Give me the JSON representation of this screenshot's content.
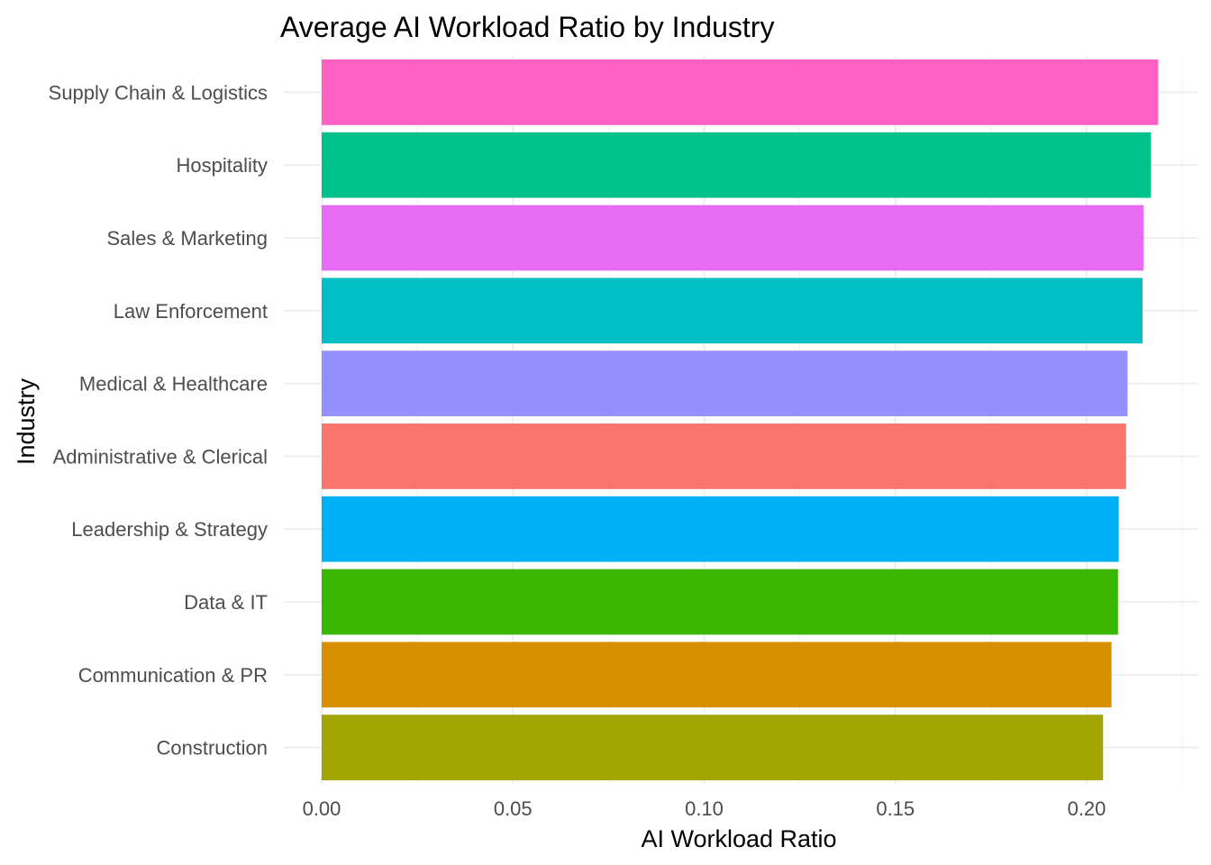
{
  "chart_data": {
    "type": "bar",
    "orientation": "horizontal",
    "title": "Average AI Workload Ratio by Industry",
    "xlabel": "AI Workload Ratio",
    "ylabel": "Industry",
    "xlim": [
      0,
      0.225
    ],
    "xticks": [
      "0.00",
      "0.05",
      "0.10",
      "0.15",
      "0.20"
    ],
    "grid": true,
    "legend": "none",
    "categories": [
      "Supply Chain & Logistics",
      "Hospitality",
      "Sales & Marketing",
      "Law Enforcement",
      "Medical & Healthcare",
      "Administrative & Clerical",
      "Leadership & Strategy",
      "Data & IT",
      "Communication & PR",
      "Construction"
    ],
    "values": [
      0.2187,
      0.2168,
      0.2149,
      0.2146,
      0.2107,
      0.2103,
      0.2084,
      0.2082,
      0.2065,
      0.2043
    ],
    "colors": [
      "#FF61C3",
      "#00C08B",
      "#E76BF3",
      "#00BFC4",
      "#9590FF",
      "#F8766D",
      "#00B0F6",
      "#39B600",
      "#D89000",
      "#A3A500"
    ]
  }
}
